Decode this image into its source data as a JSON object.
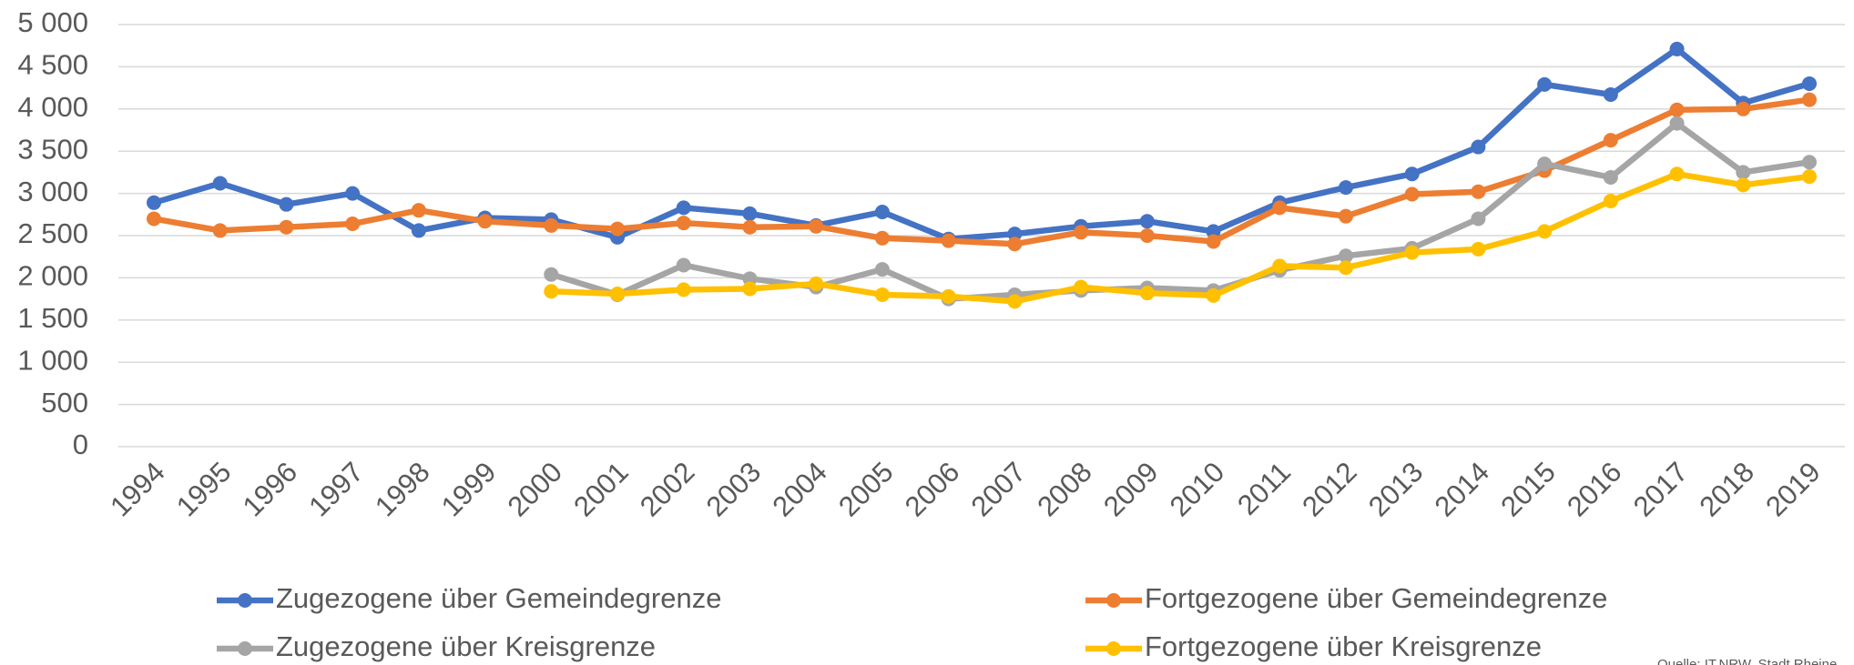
{
  "chart_data": {
    "type": "line",
    "categories": [
      "1994",
      "1995",
      "1996",
      "1997",
      "1998",
      "1999",
      "2000",
      "2001",
      "2002",
      "2003",
      "2004",
      "2005",
      "2006",
      "2007",
      "2008",
      "2009",
      "2010",
      "2011",
      "2012",
      "2013",
      "2014",
      "2015",
      "2016",
      "2017",
      "2018",
      "2019"
    ],
    "series": [
      {
        "name": "Zugezogene über Gemeindegrenze",
        "color": "#4472c4",
        "values": [
          2890,
          3120,
          2870,
          3000,
          2560,
          2710,
          2690,
          2480,
          2830,
          2760,
          2620,
          2780,
          2460,
          2520,
          2610,
          2670,
          2550,
          2890,
          3070,
          3230,
          3550,
          4290,
          4170,
          4710,
          4070,
          4300
        ]
      },
      {
        "name": "Fortgezogene über Gemeindegrenze",
        "color": "#ed7d31",
        "values": [
          2700,
          2560,
          2600,
          2640,
          2800,
          2670,
          2620,
          2580,
          2650,
          2600,
          2610,
          2470,
          2440,
          2400,
          2540,
          2500,
          2430,
          2830,
          2730,
          2990,
          3020,
          3270,
          3630,
          3990,
          4000,
          4110
        ]
      },
      {
        "name": "Zugezogene über Kreisgrenze",
        "color": "#a5a5a5",
        "values": [
          null,
          null,
          null,
          null,
          null,
          null,
          2040,
          1800,
          2150,
          1990,
          1890,
          2100,
          1750,
          1800,
          1850,
          1880,
          1850,
          2090,
          2260,
          2350,
          2700,
          3350,
          3190,
          3830,
          3250,
          3370
        ]
      },
      {
        "name": "Fortgezogene über Kreisgrenze",
        "color": "#ffc000",
        "values": [
          null,
          null,
          null,
          null,
          null,
          null,
          1840,
          1810,
          1860,
          1870,
          1930,
          1800,
          1780,
          1720,
          1890,
          1820,
          1790,
          2140,
          2120,
          2300,
          2340,
          2550,
          2910,
          3230,
          3100,
          3200
        ]
      }
    ],
    "ylim": [
      0,
      5000
    ],
    "yticks": [
      0,
      500,
      {
        "value": 1000,
        "label": "1 000"
      },
      {
        "value": 1500,
        "label": "1 500"
      },
      {
        "value": 2000,
        "label": "2 000"
      },
      {
        "value": 2500,
        "label": "2 500"
      },
      {
        "value": 3000,
        "label": "3 000"
      },
      {
        "value": 3500,
        "label": "3 500"
      },
      {
        "value": 4000,
        "label": "4 000"
      },
      {
        "value": 4500,
        "label": "4 500"
      },
      {
        "value": 5000,
        "label": "5 000"
      }
    ],
    "grid": true,
    "legend": "bottom",
    "source": "Quelle: IT.NRW, Stadt Rheine"
  }
}
